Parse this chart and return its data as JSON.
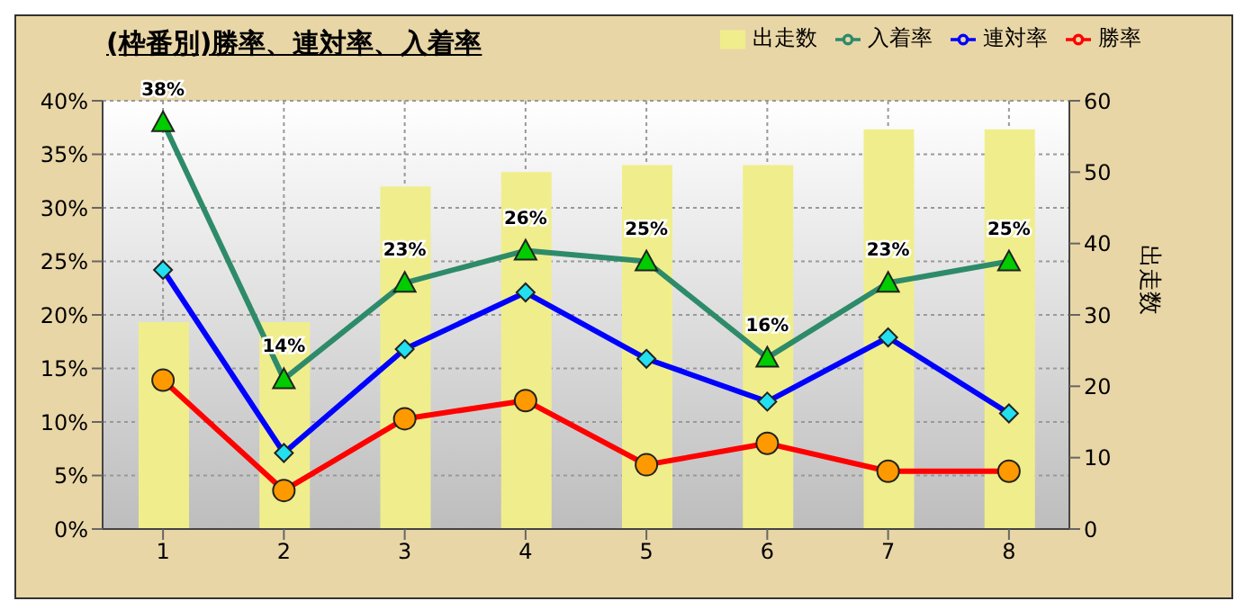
{
  "chart_data": {
    "type": "line",
    "title": "(枠番別)勝率、連対率、入着率",
    "y2label": "出走数",
    "categories": [
      "1",
      "2",
      "3",
      "4",
      "5",
      "6",
      "7",
      "8"
    ],
    "series": [
      {
        "name": "出走数",
        "type": "bar",
        "axis": "y2",
        "color": "#f0ee8c",
        "values": [
          29,
          29,
          48,
          50,
          51,
          51,
          56,
          56
        ]
      },
      {
        "name": "入着率",
        "color": "#2e8b6a",
        "marker": "triangle",
        "values": [
          38,
          14,
          23,
          26,
          25,
          16,
          23,
          25
        ],
        "value_labels": [
          "38%",
          "14%",
          "23%",
          "26%",
          "25%",
          "16%",
          "23%",
          "25%"
        ]
      },
      {
        "name": "連対率",
        "color": "#0000ff",
        "marker": "diamond",
        "values": [
          24.2,
          7.1,
          16.8,
          22.1,
          15.9,
          11.9,
          17.9,
          10.8
        ]
      },
      {
        "name": "勝率",
        "color": "#ff0000",
        "marker": "circle",
        "values": [
          13.9,
          3.6,
          10.3,
          12.0,
          6.0,
          8.0,
          5.4,
          5.4
        ]
      }
    ],
    "ylim": [
      0,
      40
    ],
    "yticks": [
      {
        "value": 0,
        "label": "0%"
      },
      {
        "value": 5,
        "label": "5%"
      },
      {
        "value": 10,
        "label": "10%"
      },
      {
        "value": 15,
        "label": "15%"
      },
      {
        "value": 20,
        "label": "20%"
      },
      {
        "value": 25,
        "label": "25%"
      },
      {
        "value": 30,
        "label": "30%"
      },
      {
        "value": 35,
        "label": "35%"
      },
      {
        "value": 40,
        "label": "40%"
      }
    ],
    "y2lim": [
      0,
      60
    ],
    "y2ticks": [
      0,
      10,
      20,
      30,
      40,
      50,
      60
    ],
    "grid": true,
    "legend": "top right"
  }
}
